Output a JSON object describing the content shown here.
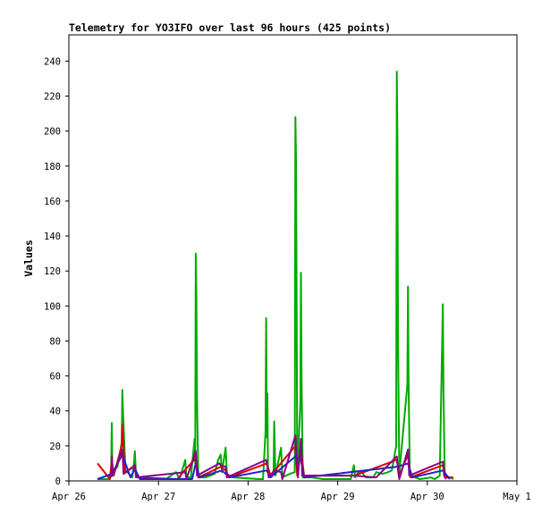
{
  "chart_data": {
    "type": "line",
    "title": "Telemetry for YO3IFO over last 96 hours (425 points)",
    "xlabel": "",
    "ylabel": "Values",
    "ylim": [
      0,
      255
    ],
    "y_ticks": [
      0,
      20,
      40,
      60,
      80,
      100,
      120,
      140,
      160,
      180,
      200,
      220,
      240
    ],
    "x_domain": [
      "2024-04-26",
      "2024-05-01"
    ],
    "x_ticks": [
      {
        "date": "2024-04-26",
        "label": "Apr 26"
      },
      {
        "date": "2024-04-27",
        "label": "Apr 27"
      },
      {
        "date": "2024-04-28",
        "label": "Apr 28"
      },
      {
        "date": "2024-04-29",
        "label": "Apr 29"
      },
      {
        "date": "2024-04-30",
        "label": "Apr 30"
      },
      {
        "date": "2024-05-01",
        "label": "May 1"
      }
    ],
    "grid": false,
    "legend": "none",
    "series": [
      {
        "color": "#00aa00",
        "points": [
          [
            "2024-04-26T07:40",
            1
          ],
          [
            "2024-04-26T10:50",
            1
          ],
          [
            "2024-04-26T11:20",
            6
          ],
          [
            "2024-04-26T11:30",
            33
          ],
          [
            "2024-04-26T11:40",
            3
          ],
          [
            "2024-04-26T12:10",
            6
          ],
          [
            "2024-04-26T13:00",
            8
          ],
          [
            "2024-04-26T14:10",
            22
          ],
          [
            "2024-04-26T14:20",
            52
          ],
          [
            "2024-04-26T14:30",
            40
          ],
          [
            "2024-04-26T15:10",
            6
          ],
          [
            "2024-04-26T17:00",
            2
          ],
          [
            "2024-04-26T17:30",
            12
          ],
          [
            "2024-04-26T17:40",
            17
          ],
          [
            "2024-04-26T18:00",
            3
          ],
          [
            "2024-04-26T19:40",
            1
          ],
          [
            "2024-04-26T22:00",
            1
          ],
          [
            "2024-04-27T02:00",
            1
          ],
          [
            "2024-04-27T04:40",
            5
          ],
          [
            "2024-04-27T05:40",
            1
          ],
          [
            "2024-04-27T07:10",
            12
          ],
          [
            "2024-04-27T07:30",
            2
          ],
          [
            "2024-04-27T08:40",
            2
          ],
          [
            "2024-04-27T09:40",
            24
          ],
          [
            "2024-04-27T09:50",
            10
          ],
          [
            "2024-04-27T10:00",
            130
          ],
          [
            "2024-04-27T10:10",
            105
          ],
          [
            "2024-04-27T10:20",
            47
          ],
          [
            "2024-04-27T10:40",
            2
          ],
          [
            "2024-04-27T12:40",
            2
          ],
          [
            "2024-04-27T15:00",
            4
          ],
          [
            "2024-04-27T16:00",
            12
          ],
          [
            "2024-04-27T16:40",
            15
          ],
          [
            "2024-04-27T17:00",
            5
          ],
          [
            "2024-04-27T18:00",
            19
          ],
          [
            "2024-04-27T18:20",
            4
          ],
          [
            "2024-04-27T20:00",
            2
          ],
          [
            "2024-04-28T03:00",
            1
          ],
          [
            "2024-04-28T04:00",
            1
          ],
          [
            "2024-04-28T04:40",
            28
          ],
          [
            "2024-04-28T04:50",
            93
          ],
          [
            "2024-04-28T05:00",
            25
          ],
          [
            "2024-04-28T05:10",
            50
          ],
          [
            "2024-04-28T05:20",
            4
          ],
          [
            "2024-04-28T06:50",
            4
          ],
          [
            "2024-04-28T07:00",
            34
          ],
          [
            "2024-04-28T07:20",
            3
          ],
          [
            "2024-04-28T08:50",
            19
          ],
          [
            "2024-04-28T09:10",
            2
          ],
          [
            "2024-04-28T11:10",
            4
          ],
          [
            "2024-04-28T12:30",
            5
          ],
          [
            "2024-04-28T12:40",
            208
          ],
          [
            "2024-04-28T12:50",
            185
          ],
          [
            "2024-04-28T13:00",
            103
          ],
          [
            "2024-04-28T13:10",
            3
          ],
          [
            "2024-04-28T14:00",
            45
          ],
          [
            "2024-04-28T14:10",
            119
          ],
          [
            "2024-04-28T14:20",
            60
          ],
          [
            "2024-04-28T14:40",
            2
          ],
          [
            "2024-04-28T17:00",
            2
          ],
          [
            "2024-04-28T20:00",
            1
          ],
          [
            "2024-04-28T23:00",
            1
          ],
          [
            "2024-04-29T03:30",
            1
          ],
          [
            "2024-04-29T04:20",
            9
          ],
          [
            "2024-04-29T04:40",
            2
          ],
          [
            "2024-04-29T05:30",
            5
          ],
          [
            "2024-04-29T06:30",
            5
          ],
          [
            "2024-04-29T07:30",
            2
          ],
          [
            "2024-04-29T09:30",
            2
          ],
          [
            "2024-04-29T10:20",
            5
          ],
          [
            "2024-04-29T12:00",
            4
          ],
          [
            "2024-04-29T13:30",
            5
          ],
          [
            "2024-04-29T14:30",
            6
          ],
          [
            "2024-04-29T15:40",
            20
          ],
          [
            "2024-04-29T15:50",
            234
          ],
          [
            "2024-04-29T16:00",
            194
          ],
          [
            "2024-04-29T16:10",
            77
          ],
          [
            "2024-04-29T16:30",
            4
          ],
          [
            "2024-04-29T18:40",
            55
          ],
          [
            "2024-04-29T18:50",
            111
          ],
          [
            "2024-04-29T19:00",
            55
          ],
          [
            "2024-04-29T19:20",
            3
          ],
          [
            "2024-04-29T22:00",
            1
          ],
          [
            "2024-04-30T01:00",
            2
          ],
          [
            "2024-04-30T02:00",
            1
          ],
          [
            "2024-04-30T03:20",
            3
          ],
          [
            "2024-04-30T04:10",
            101
          ],
          [
            "2024-04-30T04:20",
            51
          ],
          [
            "2024-04-30T04:40",
            3
          ],
          [
            "2024-04-30T06:00",
            2
          ],
          [
            "2024-04-30T07:00",
            1
          ]
        ]
      },
      {
        "color": "#dd0000",
        "points": [
          [
            "2024-04-26T07:40",
            10
          ],
          [
            "2024-04-26T11:00",
            1
          ],
          [
            "2024-04-26T11:30",
            12
          ],
          [
            "2024-04-26T12:00",
            3
          ],
          [
            "2024-04-26T14:10",
            20
          ],
          [
            "2024-04-26T14:20",
            32
          ],
          [
            "2024-04-26T15:00",
            5
          ],
          [
            "2024-04-26T17:30",
            8
          ],
          [
            "2024-04-26T18:30",
            2
          ],
          [
            "2024-04-27T05:00",
            1
          ],
          [
            "2024-04-27T07:00",
            6
          ],
          [
            "2024-04-27T10:00",
            13
          ],
          [
            "2024-04-27T10:40",
            2
          ],
          [
            "2024-04-27T16:40",
            8
          ],
          [
            "2024-04-27T18:00",
            6
          ],
          [
            "2024-04-27T19:00",
            2
          ],
          [
            "2024-04-28T05:00",
            10
          ],
          [
            "2024-04-28T06:00",
            3
          ],
          [
            "2024-04-28T12:40",
            20
          ],
          [
            "2024-04-28T13:10",
            3
          ],
          [
            "2024-04-28T14:10",
            18
          ],
          [
            "2024-04-28T15:00",
            3
          ],
          [
            "2024-04-29T04:30",
            3
          ],
          [
            "2024-04-29T15:50",
            12
          ],
          [
            "2024-04-29T16:30",
            3
          ],
          [
            "2024-04-29T18:50",
            15
          ],
          [
            "2024-04-29T19:30",
            2
          ],
          [
            "2024-04-30T04:10",
            9
          ],
          [
            "2024-04-30T05:00",
            2
          ],
          [
            "2024-04-30T07:00",
            2
          ]
        ]
      },
      {
        "color": "#2222cc",
        "points": [
          [
            "2024-04-26T07:40",
            1
          ],
          [
            "2024-04-26T11:30",
            4
          ],
          [
            "2024-04-26T14:20",
            15
          ],
          [
            "2024-04-26T15:30",
            8
          ],
          [
            "2024-04-26T16:30",
            2
          ],
          [
            "2024-04-26T17:40",
            7
          ],
          [
            "2024-04-26T19:00",
            1
          ],
          [
            "2024-04-27T09:00",
            1
          ],
          [
            "2024-04-27T10:00",
            10
          ],
          [
            "2024-04-27T11:00",
            2
          ],
          [
            "2024-04-27T17:00",
            6
          ],
          [
            "2024-04-27T19:00",
            2
          ],
          [
            "2024-04-28T05:00",
            6
          ],
          [
            "2024-04-28T06:00",
            2
          ],
          [
            "2024-04-28T12:40",
            14
          ],
          [
            "2024-04-28T14:10",
            12
          ],
          [
            "2024-04-28T15:00",
            2
          ],
          [
            "2024-04-29T15:50",
            8
          ],
          [
            "2024-04-29T18:50",
            10
          ],
          [
            "2024-04-29T20:00",
            2
          ],
          [
            "2024-04-30T04:10",
            6
          ],
          [
            "2024-04-30T06:00",
            1
          ]
        ]
      },
      {
        "color": "#880088",
        "points": [
          [
            "2024-04-26T11:20",
            2
          ],
          [
            "2024-04-26T11:30",
            14
          ],
          [
            "2024-04-26T11:50",
            3
          ],
          [
            "2024-04-26T14:20",
            18
          ],
          [
            "2024-04-26T14:40",
            4
          ],
          [
            "2024-04-26T17:40",
            9
          ],
          [
            "2024-04-26T18:00",
            2
          ],
          [
            "2024-04-27T07:10",
            5
          ],
          [
            "2024-04-27T07:30",
            1
          ],
          [
            "2024-04-27T10:00",
            17
          ],
          [
            "2024-04-27T10:20",
            3
          ],
          [
            "2024-04-27T16:20",
            10
          ],
          [
            "2024-04-27T16:40",
            9
          ],
          [
            "2024-04-27T18:00",
            8
          ],
          [
            "2024-04-27T18:20",
            2
          ],
          [
            "2024-04-28T04:50",
            12
          ],
          [
            "2024-04-28T05:10",
            8
          ],
          [
            "2024-04-28T05:30",
            2
          ],
          [
            "2024-04-28T07:00",
            6
          ],
          [
            "2024-04-28T08:50",
            5
          ],
          [
            "2024-04-28T09:10",
            1
          ],
          [
            "2024-04-28T12:40",
            26
          ],
          [
            "2024-04-28T13:00",
            14
          ],
          [
            "2024-04-28T13:20",
            2
          ],
          [
            "2024-04-28T14:10",
            24
          ],
          [
            "2024-04-28T14:30",
            3
          ],
          [
            "2024-04-29T04:20",
            3
          ],
          [
            "2024-04-29T10:20",
            2
          ],
          [
            "2024-04-29T15:50",
            14
          ],
          [
            "2024-04-29T16:10",
            6
          ],
          [
            "2024-04-29T16:30",
            1
          ],
          [
            "2024-04-29T18:50",
            18
          ],
          [
            "2024-04-29T19:10",
            3
          ],
          [
            "2024-04-30T04:10",
            11
          ],
          [
            "2024-04-30T04:30",
            3
          ],
          [
            "2024-04-30T05:00",
            1
          ]
        ]
      }
    ]
  }
}
